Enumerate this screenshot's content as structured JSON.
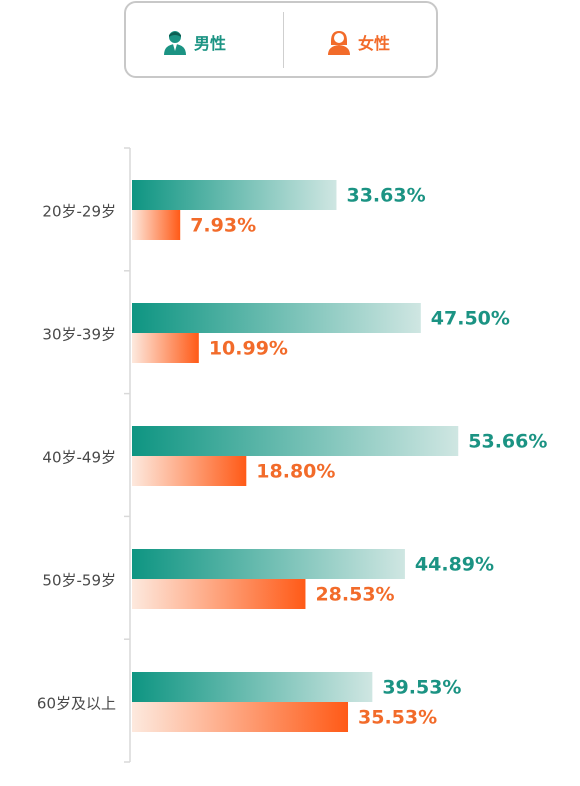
{
  "legend": {
    "male_label": "男性",
    "female_label": "女性",
    "male_icon": "male-person-icon",
    "female_icon": "female-person-icon"
  },
  "colors": {
    "male_dark": "#0e9582",
    "male_light": "#cfe6e2",
    "female_dark": "#ff5a17",
    "female_light": "#fde9de",
    "male_text": "#1b9383",
    "female_text": "#f26b2a"
  },
  "chart_data": {
    "type": "bar",
    "orientation": "horizontal",
    "categories": [
      "20岁-29岁",
      "30岁-39岁",
      "40岁-49岁",
      "50岁-59岁",
      "60岁及以上"
    ],
    "series": [
      {
        "name": "男性",
        "values": [
          33.63,
          47.5,
          53.66,
          44.89,
          39.53
        ],
        "labels": [
          "33.63%",
          "47.50%",
          "53.66%",
          "44.89%",
          "39.53%"
        ]
      },
      {
        "name": "女性",
        "values": [
          7.93,
          10.99,
          18.8,
          28.53,
          35.53
        ],
        "labels": [
          "7.93%",
          "10.99%",
          "18.80%",
          "28.53%",
          "35.53%"
        ]
      }
    ],
    "grid": false,
    "legend_position": "top-center"
  }
}
